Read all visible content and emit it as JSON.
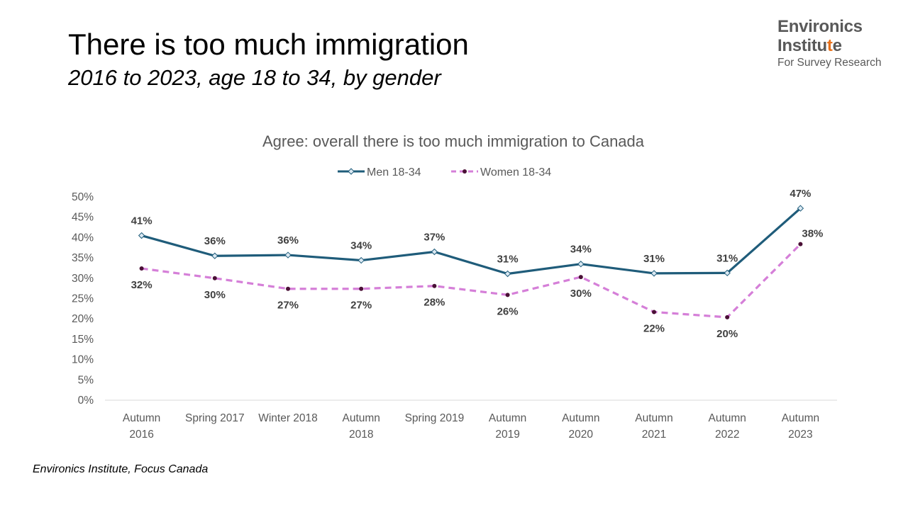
{
  "slide": {
    "title": "There is too much immigration",
    "subtitle": "2016 to 2023, age 18 to 34, by gender",
    "source": "Environics Institute, Focus Canada"
  },
  "logo": {
    "line1": "Environics",
    "line2": "Institute",
    "line3": "For Survey Research",
    "accent_color": "#e8711b"
  },
  "chart_data": {
    "type": "line",
    "title": "Agree: overall there is too much immigration to Canada",
    "categories": [
      [
        "Autumn",
        "2016"
      ],
      [
        "Spring 2017"
      ],
      [
        "Winter 2018"
      ],
      [
        "Autumn",
        "2018"
      ],
      [
        "Spring 2019"
      ],
      [
        "Autumn",
        "2019"
      ],
      [
        "Autumn",
        "2020"
      ],
      [
        "Autumn",
        "2021"
      ],
      [
        "Autumn",
        "2022"
      ],
      [
        "Autumn",
        "2023"
      ]
    ],
    "series": [
      {
        "name": "Men 18-34",
        "values": [
          40.5,
          35.5,
          35.7,
          34.4,
          36.5,
          31.1,
          33.5,
          31.2,
          31.3,
          47.2
        ],
        "labels": [
          "41%",
          "36%",
          "36%",
          "34%",
          "37%",
          "31%",
          "34%",
          "31%",
          "31%",
          "47%"
        ],
        "color": "#1f5c7a",
        "marker": "diamond",
        "dash": "solid"
      },
      {
        "name": "Women 18-34",
        "values": [
          32.4,
          30.0,
          27.4,
          27.4,
          28.1,
          25.9,
          30.3,
          21.7,
          20.4,
          38.4
        ],
        "labels": [
          "32%",
          "30%",
          "27%",
          "27%",
          "28%",
          "26%",
          "30%",
          "22%",
          "20%",
          "38%"
        ],
        "color": "#d57fd8",
        "marker_color": "#4a1036",
        "marker": "circle",
        "dash": "dashed"
      }
    ],
    "yticks": [
      "0%",
      "5%",
      "10%",
      "15%",
      "20%",
      "25%",
      "30%",
      "35%",
      "40%",
      "45%",
      "50%"
    ],
    "ylim": [
      0,
      50
    ],
    "legend_position": "top-center",
    "grid": false
  }
}
